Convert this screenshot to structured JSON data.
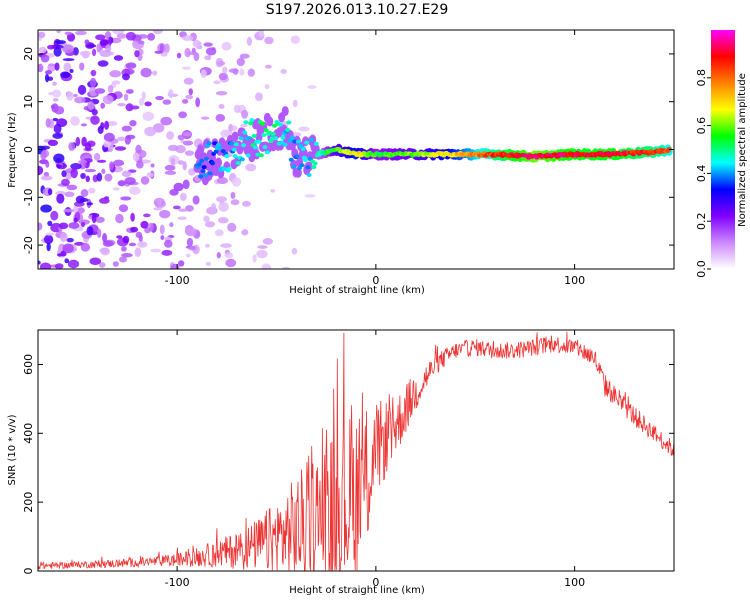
{
  "title": "S197.2026.013.10.27.E29",
  "chart_data": [
    {
      "type": "heatmap",
      "xlabel": "Height of straight line (km)",
      "ylabel": "Frequency (Hz)",
      "xlim": [
        -170,
        150
      ],
      "ylim": [
        -25,
        25
      ],
      "xticks": [
        -100,
        0,
        100
      ],
      "yticks": [
        -20,
        -10,
        0,
        10,
        20
      ],
      "xtick_labels": [
        "-100",
        "0",
        "100"
      ],
      "ytick_labels": [
        "-20",
        "-10",
        "0",
        "10",
        "20"
      ],
      "colorbar": {
        "label": "Normalized spectral amplitude",
        "range": [
          0,
          1
        ],
        "ticks": [
          0.0,
          0.2,
          0.4,
          0.6,
          0.8
        ],
        "tick_labels": [
          "0.0",
          "0.2",
          "0.4",
          "0.6",
          "0.8"
        ],
        "colors": [
          "#ffffff",
          "#cc88ff",
          "#8000ff",
          "#0000ff",
          "#00ffff",
          "#00ff00",
          "#ffff00",
          "#ff8000",
          "#ff0000",
          "#ff00ff"
        ]
      },
      "signal_track": [
        {
          "x": -90,
          "y": -3,
          "a": 0.35
        },
        {
          "x": -75,
          "y": -1,
          "a": 0.4
        },
        {
          "x": -65,
          "y": 2,
          "a": 0.45
        },
        {
          "x": -55,
          "y": 3,
          "a": 0.5
        },
        {
          "x": -45,
          "y": 5,
          "a": 0.45
        },
        {
          "x": -40,
          "y": -2,
          "a": 0.4
        },
        {
          "x": -30,
          "y": -1,
          "a": 0.45
        },
        {
          "x": -20,
          "y": 0,
          "a": 0.6
        },
        {
          "x": -10,
          "y": -1,
          "a": 0.7
        },
        {
          "x": 0,
          "y": -1,
          "a": 0.55
        },
        {
          "x": 20,
          "y": -1,
          "a": 0.6
        },
        {
          "x": 40,
          "y": -1,
          "a": 0.7
        },
        {
          "x": 60,
          "y": -1,
          "a": 0.85
        },
        {
          "x": 80,
          "y": -1.5,
          "a": 0.95
        },
        {
          "x": 100,
          "y": -1,
          "a": 0.9
        },
        {
          "x": 120,
          "y": -1,
          "a": 0.9
        },
        {
          "x": 140,
          "y": -0.5,
          "a": 0.85
        },
        {
          "x": 148,
          "y": 0,
          "a": 0.8
        }
      ],
      "noise_region": {
        "x_from": -170,
        "x_to": -60,
        "y_from": -25,
        "y_to": 25
      }
    },
    {
      "type": "line",
      "xlabel": "Height of straight line (km)",
      "ylabel": "SNR (10 * v/v)",
      "xlim": [
        -170,
        150
      ],
      "ylim": [
        0,
        700
      ],
      "xticks": [
        -100,
        0,
        100
      ],
      "yticks": [
        0,
        200,
        400,
        600
      ],
      "xtick_labels": [
        "-100",
        "0",
        "100"
      ],
      "ytick_labels": [
        "0",
        "200",
        "400",
        "600"
      ],
      "series": [
        {
          "name": "SNR",
          "color": "#ee3333",
          "envelope": {
            "x": [
              -170,
              -150,
              -130,
              -110,
              -100,
              -90,
              -80,
              -70,
              -60,
              -50,
              -40,
              -30,
              -20,
              -10,
              -5,
              0,
              10,
              20,
              30,
              40,
              50,
              60,
              70,
              80,
              90,
              100,
              110,
              115,
              120,
              130,
              140,
              150
            ],
            "base": [
              15,
              18,
              22,
              28,
              32,
              40,
              50,
              60,
              75,
              95,
              120,
              150,
              180,
              220,
              260,
              350,
              420,
              520,
              600,
              640,
              650,
              640,
              640,
              650,
              660,
              650,
              620,
              540,
              510,
              450,
              400,
              350
            ],
            "noise": [
              10,
              10,
              12,
              15,
              20,
              28,
              40,
              55,
              75,
              110,
              160,
              200,
              240,
              260,
              220,
              140,
              90,
              60,
              30,
              25,
              25,
              25,
              25,
              25,
              25,
              25,
              30,
              35,
              30,
              30,
              25,
              25
            ]
          }
        }
      ]
    }
  ]
}
